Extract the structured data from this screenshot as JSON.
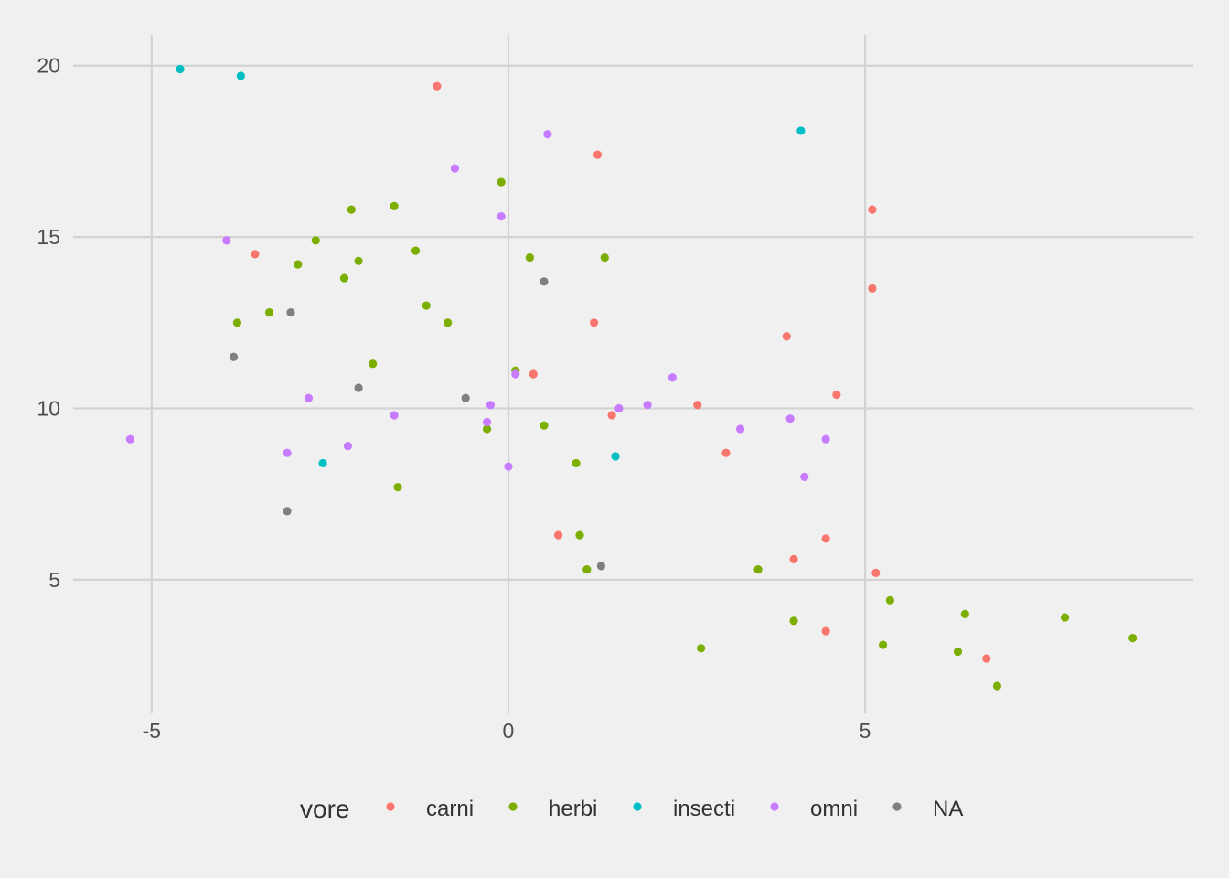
{
  "chart_data": {
    "type": "scatter",
    "title": "",
    "xlabel": "",
    "ylabel": "",
    "xlim": [
      -6.1,
      9.6
    ],
    "ylim": [
      1.1,
      20.9
    ],
    "x_ticks": [
      -5,
      0,
      5
    ],
    "y_ticks": [
      5,
      10,
      15,
      20
    ],
    "x_tick_labels": [
      "-5",
      "0",
      "5"
    ],
    "y_tick_labels": [
      "5",
      "10",
      "15",
      "20"
    ],
    "grid": true,
    "legend": {
      "title": "vore",
      "position": "bottom",
      "entries": [
        {
          "label": "carni",
          "color": "#F8766D"
        },
        {
          "label": "herbi",
          "color": "#7CAE00"
        },
        {
          "label": "insecti",
          "color": "#00BFC4"
        },
        {
          "label": "omni",
          "color": "#C77CFF"
        },
        {
          "label": "NA",
          "color": "#7F7F7F"
        }
      ]
    },
    "series": [
      {
        "name": "carni",
        "color": "#F8766D",
        "points": [
          [
            -1.0,
            19.4
          ],
          [
            1.25,
            17.4
          ],
          [
            5.1,
            15.8
          ],
          [
            -3.55,
            14.5
          ],
          [
            5.1,
            13.5
          ],
          [
            1.2,
            12.5
          ],
          [
            3.9,
            12.1
          ],
          [
            0.35,
            11.0
          ],
          [
            4.6,
            10.4
          ],
          [
            2.65,
            10.1
          ],
          [
            1.45,
            9.8
          ],
          [
            3.05,
            8.7
          ],
          [
            0.7,
            6.3
          ],
          [
            4.45,
            6.2
          ],
          [
            4.0,
            5.6
          ],
          [
            5.15,
            5.2
          ],
          [
            4.45,
            3.5
          ],
          [
            6.7,
            2.7
          ]
        ]
      },
      {
        "name": "herbi",
        "color": "#7CAE00",
        "points": [
          [
            -0.1,
            16.6
          ],
          [
            -1.6,
            15.9
          ],
          [
            -2.2,
            15.8
          ],
          [
            -2.7,
            14.9
          ],
          [
            -1.3,
            14.6
          ],
          [
            0.3,
            14.4
          ],
          [
            1.35,
            14.4
          ],
          [
            -2.1,
            14.3
          ],
          [
            -2.95,
            14.2
          ],
          [
            -2.3,
            13.8
          ],
          [
            -1.15,
            13.0
          ],
          [
            -3.35,
            12.8
          ],
          [
            -3.8,
            12.5
          ],
          [
            -0.85,
            12.5
          ],
          [
            -1.9,
            11.3
          ],
          [
            0.1,
            11.1
          ],
          [
            0.5,
            9.5
          ],
          [
            -0.3,
            9.4
          ],
          [
            0.95,
            8.4
          ],
          [
            -1.55,
            7.7
          ],
          [
            1.0,
            6.3
          ],
          [
            1.1,
            5.3
          ],
          [
            3.5,
            5.3
          ],
          [
            5.35,
            4.4
          ],
          [
            6.4,
            4.0
          ],
          [
            7.8,
            3.9
          ],
          [
            4.0,
            3.8
          ],
          [
            8.75,
            3.3
          ],
          [
            5.25,
            3.1
          ],
          [
            2.7,
            3.0
          ],
          [
            6.3,
            2.9
          ],
          [
            6.85,
            1.9
          ]
        ]
      },
      {
        "name": "insecti",
        "color": "#00BFC4",
        "points": [
          [
            -4.6,
            19.9
          ],
          [
            -3.75,
            19.7
          ],
          [
            4.1,
            18.1
          ],
          [
            1.5,
            8.6
          ],
          [
            -2.6,
            8.4
          ]
        ]
      },
      {
        "name": "omni",
        "color": "#C77CFF",
        "points": [
          [
            0.55,
            18.0
          ],
          [
            -0.75,
            17.0
          ],
          [
            -0.1,
            15.6
          ],
          [
            -3.95,
            14.9
          ],
          [
            2.3,
            10.9
          ],
          [
            0.1,
            11.0
          ],
          [
            -2.8,
            10.3
          ],
          [
            -0.25,
            10.1
          ],
          [
            1.55,
            10.0
          ],
          [
            1.95,
            10.1
          ],
          [
            -1.6,
            9.8
          ],
          [
            3.95,
            9.7
          ],
          [
            -0.3,
            9.6
          ],
          [
            3.25,
            9.4
          ],
          [
            4.45,
            9.1
          ],
          [
            -5.3,
            9.1
          ],
          [
            -2.25,
            8.9
          ],
          [
            -3.1,
            8.7
          ],
          [
            0.0,
            8.3
          ],
          [
            4.15,
            8.0
          ]
        ]
      },
      {
        "name": "NA",
        "color": "#7F7F7F",
        "points": [
          [
            0.5,
            13.7
          ],
          [
            -3.05,
            12.8
          ],
          [
            -3.85,
            11.5
          ],
          [
            -2.1,
            10.6
          ],
          [
            -0.6,
            10.3
          ],
          [
            -3.1,
            7.0
          ],
          [
            1.3,
            5.4
          ]
        ]
      }
    ]
  }
}
